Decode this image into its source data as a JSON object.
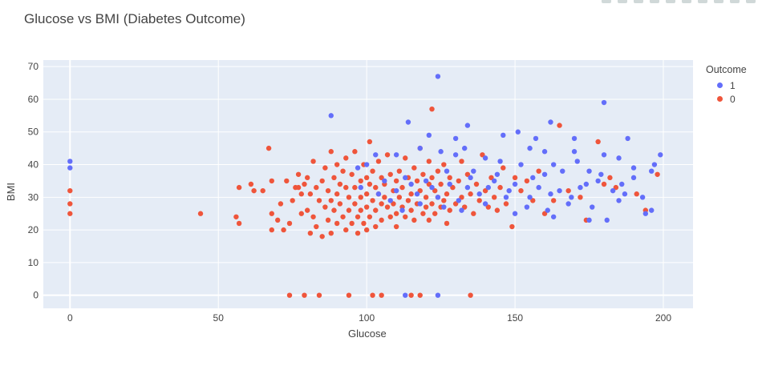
{
  "title": "Glucose vs BMI (Diabetes Outcome)",
  "legend": {
    "title": "Outcome",
    "items": [
      {
        "label": "1",
        "color": "#636efa"
      },
      {
        "label": "0",
        "color": "#ef553b"
      }
    ]
  },
  "chart_data": {
    "type": "scatter",
    "title": "Glucose vs BMI (Diabetes Outcome)",
    "xlabel": "Glucose",
    "ylabel": "BMI",
    "xlim": [
      -9,
      210
    ],
    "ylim": [
      -4,
      72
    ],
    "xticks": [
      0,
      50,
      100,
      150,
      200
    ],
    "yticks": [
      0,
      10,
      20,
      30,
      40,
      50,
      60,
      70
    ],
    "grid": true,
    "legend_position": "top-right",
    "series": [
      {
        "name": "1",
        "color": "#636efa",
        "points": [
          [
            0,
            41
          ],
          [
            0,
            39
          ],
          [
            88,
            55
          ],
          [
            124,
            67
          ],
          [
            180,
            59
          ],
          [
            162,
            53
          ],
          [
            114,
            53
          ],
          [
            134,
            52
          ],
          [
            130,
            48
          ],
          [
            170,
            48
          ],
          [
            188,
            48
          ],
          [
            146,
            49
          ],
          [
            157,
            48
          ],
          [
            121,
            49
          ],
          [
            151,
            50
          ],
          [
            133,
            45
          ],
          [
            155,
            45
          ],
          [
            170,
            44
          ],
          [
            180,
            43
          ],
          [
            185,
            42
          ],
          [
            199,
            43
          ],
          [
            197,
            40
          ],
          [
            190,
            39
          ],
          [
            175,
            38
          ],
          [
            166,
            38
          ],
          [
            160,
            37
          ],
          [
            152,
            40
          ],
          [
            145,
            41
          ],
          [
            140,
            42
          ],
          [
            130,
            43
          ],
          [
            125,
            44
          ],
          [
            118,
            45
          ],
          [
            110,
            43
          ],
          [
            103,
            43
          ],
          [
            100,
            40
          ],
          [
            97,
            39
          ],
          [
            113,
            36
          ],
          [
            120,
            35
          ],
          [
            127,
            38
          ],
          [
            135,
            36
          ],
          [
            143,
            35
          ],
          [
            150,
            34
          ],
          [
            158,
            33
          ],
          [
            165,
            32
          ],
          [
            172,
            33
          ],
          [
            178,
            35
          ],
          [
            183,
            32
          ],
          [
            187,
            31
          ],
          [
            193,
            30
          ],
          [
            196,
            26
          ],
          [
            194,
            25
          ],
          [
            185,
            29
          ],
          [
            176,
            27
          ],
          [
            168,
            28
          ],
          [
            161,
            26
          ],
          [
            154,
            27
          ],
          [
            147,
            30
          ],
          [
            138,
            31
          ],
          [
            131,
            29
          ],
          [
            124,
            30
          ],
          [
            117,
            31
          ],
          [
            110,
            32
          ],
          [
            104,
            31
          ],
          [
            98,
            33
          ],
          [
            108,
            29
          ],
          [
            115,
            34
          ],
          [
            122,
            33
          ],
          [
            128,
            34
          ],
          [
            134,
            33
          ],
          [
            141,
            33
          ],
          [
            148,
            32
          ],
          [
            155,
            30
          ],
          [
            162,
            31
          ],
          [
            169,
            30
          ],
          [
            174,
            34
          ],
          [
            181,
            23
          ],
          [
            190,
            36
          ],
          [
            196,
            38
          ],
          [
            150,
            25
          ],
          [
            140,
            28
          ],
          [
            132,
            26
          ],
          [
            118,
            28
          ],
          [
            106,
            35
          ],
          [
            112,
            26
          ],
          [
            126,
            27
          ],
          [
            136,
            38
          ],
          [
            144,
            37
          ],
          [
            156,
            36
          ],
          [
            163,
            40
          ],
          [
            171,
            41
          ],
          [
            179,
            37
          ],
          [
            186,
            34
          ],
          [
            113,
            0
          ],
          [
            124,
            0
          ],
          [
            163,
            24
          ],
          [
            175,
            23
          ],
          [
            160,
            44
          ]
        ]
      },
      {
        "name": "0",
        "color": "#ef553b",
        "points": [
          [
            0,
            32
          ],
          [
            0,
            28
          ],
          [
            0,
            25
          ],
          [
            44,
            25
          ],
          [
            56,
            24
          ],
          [
            57,
            22
          ],
          [
            57,
            33
          ],
          [
            61,
            34
          ],
          [
            62,
            32
          ],
          [
            65,
            32
          ],
          [
            67,
            45
          ],
          [
            68,
            35
          ],
          [
            68,
            25
          ],
          [
            68,
            20
          ],
          [
            70,
            23
          ],
          [
            71,
            28
          ],
          [
            72,
            20
          ],
          [
            73,
            35
          ],
          [
            74,
            22
          ],
          [
            75,
            29
          ],
          [
            76,
            33
          ],
          [
            77,
            33
          ],
          [
            77,
            37
          ],
          [
            78,
            31
          ],
          [
            78,
            25
          ],
          [
            79,
            34
          ],
          [
            80,
            36
          ],
          [
            80,
            26
          ],
          [
            81,
            31
          ],
          [
            81,
            19
          ],
          [
            82,
            24
          ],
          [
            82,
            41
          ],
          [
            83,
            33
          ],
          [
            83,
            21
          ],
          [
            84,
            29
          ],
          [
            85,
            35
          ],
          [
            85,
            18
          ],
          [
            86,
            27
          ],
          [
            86,
            39
          ],
          [
            87,
            32
          ],
          [
            87,
            23
          ],
          [
            88,
            44
          ],
          [
            88,
            29
          ],
          [
            88,
            19
          ],
          [
            89,
            36
          ],
          [
            89,
            26
          ],
          [
            90,
            40
          ],
          [
            90,
            31
          ],
          [
            90,
            22
          ],
          [
            91,
            34
          ],
          [
            91,
            28
          ],
          [
            92,
            38
          ],
          [
            92,
            24
          ],
          [
            93,
            42
          ],
          [
            93,
            33
          ],
          [
            93,
            20
          ],
          [
            94,
            30
          ],
          [
            94,
            26
          ],
          [
            95,
            37
          ],
          [
            95,
            22
          ],
          [
            96,
            44
          ],
          [
            96,
            33
          ],
          [
            96,
            28
          ],
          [
            97,
            24
          ],
          [
            97,
            19
          ],
          [
            98,
            35
          ],
          [
            98,
            30
          ],
          [
            98,
            26
          ],
          [
            99,
            40
          ],
          [
            99,
            22
          ],
          [
            100,
            36
          ],
          [
            100,
            31
          ],
          [
            100,
            27
          ],
          [
            100,
            20
          ],
          [
            101,
            47
          ],
          [
            101,
            34
          ],
          [
            101,
            24
          ],
          [
            102,
            38
          ],
          [
            102,
            29
          ],
          [
            103,
            33
          ],
          [
            103,
            26
          ],
          [
            103,
            21
          ],
          [
            104,
            41
          ],
          [
            104,
            31
          ],
          [
            105,
            36
          ],
          [
            105,
            28
          ],
          [
            105,
            23
          ],
          [
            106,
            34
          ],
          [
            106,
            30
          ],
          [
            107,
            43
          ],
          [
            107,
            27
          ],
          [
            108,
            37
          ],
          [
            108,
            24
          ],
          [
            109,
            32
          ],
          [
            109,
            28
          ],
          [
            110,
            35
          ],
          [
            110,
            25
          ],
          [
            110,
            21
          ],
          [
            111,
            38
          ],
          [
            111,
            30
          ],
          [
            112,
            33
          ],
          [
            112,
            27
          ],
          [
            113,
            42
          ],
          [
            113,
            24
          ],
          [
            114,
            36
          ],
          [
            114,
            29
          ],
          [
            115,
            31
          ],
          [
            115,
            26
          ],
          [
            116,
            39
          ],
          [
            116,
            23
          ],
          [
            117,
            35
          ],
          [
            117,
            28
          ],
          [
            118,
            45
          ],
          [
            118,
            32
          ],
          [
            119,
            25
          ],
          [
            119,
            37
          ],
          [
            120,
            30
          ],
          [
            120,
            27
          ],
          [
            121,
            41
          ],
          [
            121,
            34
          ],
          [
            121,
            23
          ],
          [
            122,
            57
          ],
          [
            122,
            36
          ],
          [
            122,
            28
          ],
          [
            123,
            32
          ],
          [
            123,
            25
          ],
          [
            124,
            38
          ],
          [
            124,
            30
          ],
          [
            125,
            34
          ],
          [
            125,
            27
          ],
          [
            126,
            40
          ],
          [
            126,
            29
          ],
          [
            127,
            31
          ],
          [
            127,
            22
          ],
          [
            128,
            36
          ],
          [
            128,
            26
          ],
          [
            129,
            33
          ],
          [
            130,
            28
          ],
          [
            131,
            35
          ],
          [
            132,
            41
          ],
          [
            132,
            30
          ],
          [
            133,
            27
          ],
          [
            134,
            37
          ],
          [
            135,
            31
          ],
          [
            136,
            25
          ],
          [
            137,
            34
          ],
          [
            138,
            29
          ],
          [
            139,
            43
          ],
          [
            140,
            32
          ],
          [
            141,
            27
          ],
          [
            142,
            36
          ],
          [
            143,
            30
          ],
          [
            144,
            26
          ],
          [
            145,
            33
          ],
          [
            146,
            39
          ],
          [
            147,
            28
          ],
          [
            149,
            21
          ],
          [
            150,
            36
          ],
          [
            152,
            32
          ],
          [
            154,
            35
          ],
          [
            156,
            29
          ],
          [
            158,
            38
          ],
          [
            160,
            25
          ],
          [
            163,
            29
          ],
          [
            165,
            52
          ],
          [
            168,
            32
          ],
          [
            172,
            30
          ],
          [
            174,
            23
          ],
          [
            178,
            47
          ],
          [
            180,
            34
          ],
          [
            182,
            36
          ],
          [
            184,
            33
          ],
          [
            191,
            31
          ],
          [
            194,
            26
          ],
          [
            198,
            37
          ],
          [
            74,
            0
          ],
          [
            79,
            0
          ],
          [
            84,
            0
          ],
          [
            94,
            0
          ],
          [
            102,
            0
          ],
          [
            105,
            0
          ],
          [
            115,
            0
          ],
          [
            118,
            0
          ],
          [
            135,
            0
          ]
        ]
      }
    ]
  }
}
